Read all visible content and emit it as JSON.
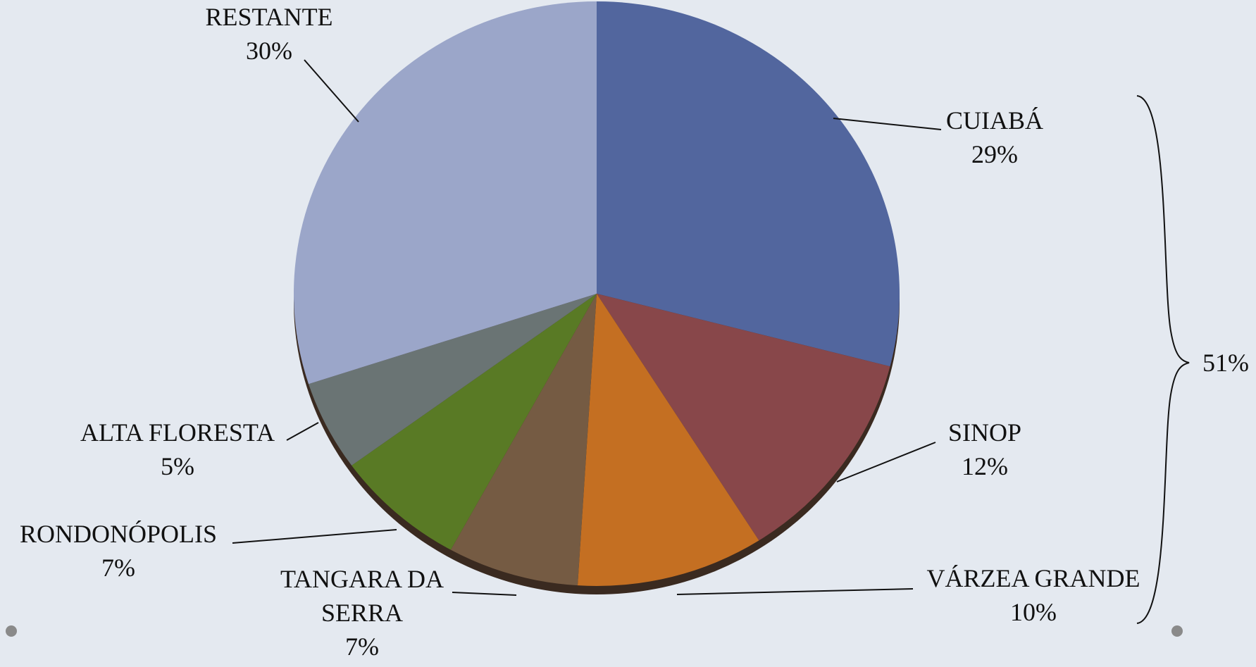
{
  "chart_data": {
    "type": "pie",
    "categories": [
      "CUIABÁ",
      "SINOP",
      "VÁRZEA GRANDE",
      "TANGARA DA SERRA",
      "RONDONÓPOLIS",
      "ALTA FLORESTA",
      "RESTANTE"
    ],
    "values": [
      29,
      12,
      10,
      7,
      7,
      5,
      30
    ],
    "value_labels": [
      "29%",
      "12%",
      "10%",
      "7%",
      "7%",
      "5%",
      "30%"
    ],
    "colors": [
      "#52669e",
      "#88474a",
      "#c46f22",
      "#755b43",
      "#597a25",
      "#6a7474",
      "#9ba6c9"
    ],
    "annotations": [
      {
        "text": "51%"
      }
    ]
  }
}
